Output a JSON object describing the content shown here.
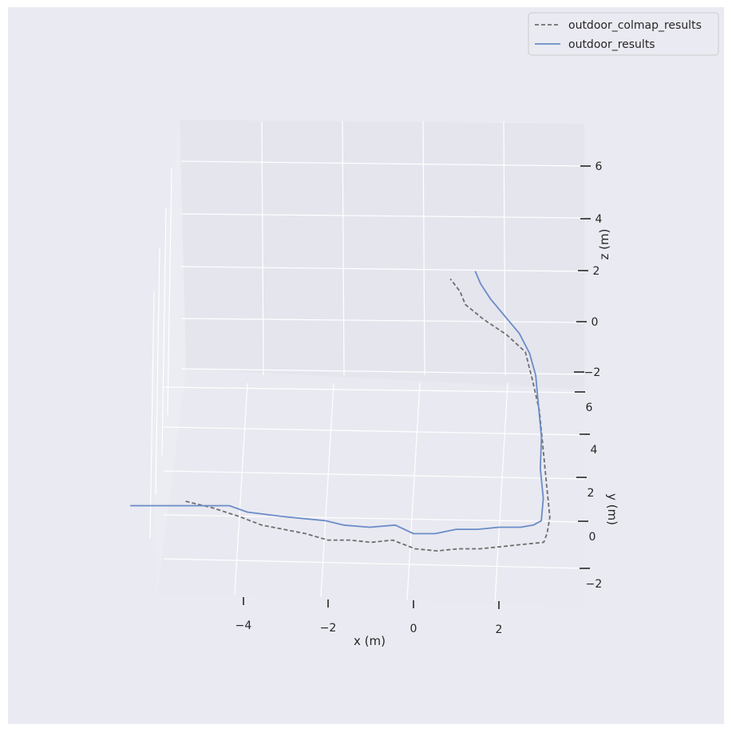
{
  "chart_data": {
    "type": "line",
    "projection": "3d",
    "xlabel": "x (m)",
    "ylabel": "y (m)",
    "zlabel": "z (m)",
    "x_ticks": [
      "−4",
      "−2",
      "0",
      "2"
    ],
    "y_ticks": [
      "6",
      "4",
      "2",
      "0",
      "−2"
    ],
    "z_ticks": [
      "6",
      "4",
      "2",
      "0",
      "−2"
    ],
    "xlim": [
      -6,
      4
    ],
    "ylim": [
      -3,
      7
    ],
    "zlim": [
      -3,
      7
    ],
    "grid": true,
    "legend_position": "top-right",
    "colors": {
      "background": "#eaeaf2",
      "grid": "#ffffff",
      "colmap": "#6e6e6e",
      "results": "#6a8cc7"
    },
    "series": [
      {
        "name": "outdoor_colmap_results",
        "style": "dashed",
        "x": [
          -5.2,
          -4.6,
          -4.0,
          -3.5,
          -3.0,
          -2.5,
          -2.0,
          -1.5,
          -1.0,
          -0.5,
          0.0,
          0.5,
          1.0,
          1.5,
          2.0,
          2.5,
          3.0,
          3.1,
          3.2,
          3.2,
          3.2,
          3.2,
          3.1,
          3.0,
          2.6,
          2.1,
          1.7,
          1.6,
          1.4
        ],
        "y": [
          3.1,
          2.8,
          2.4,
          2.0,
          1.8,
          1.6,
          1.3,
          1.3,
          1.2,
          1.3,
          0.9,
          0.8,
          0.9,
          0.9,
          1.0,
          1.1,
          1.2,
          1.5,
          2.0,
          3.0,
          4.0,
          5.0,
          5.8,
          6.3,
          6.5,
          6.6,
          6.7,
          6.7,
          6.8
        ],
        "z": [
          -1.9,
          -1.9,
          -1.9,
          -1.9,
          -1.9,
          -1.9,
          -1.9,
          -1.9,
          -1.9,
          -1.9,
          -1.9,
          -1.9,
          -1.9,
          -1.9,
          -1.9,
          -1.9,
          -1.9,
          -1.8,
          -1.6,
          -1.2,
          -0.6,
          0.0,
          0.6,
          1.2,
          1.7,
          2.2,
          2.7,
          3.2,
          3.6
        ]
      },
      {
        "name": "outdoor_results",
        "style": "solid",
        "x": [
          -6.5,
          -5.5,
          -4.5,
          -4.2,
          -3.8,
          -3.0,
          -2.0,
          -1.6,
          -1.0,
          -0.4,
          0.0,
          0.5,
          1.0,
          1.5,
          2.0,
          2.5,
          2.8,
          3.0,
          3.1,
          3.1,
          3.2,
          3.2,
          3.2,
          3.1,
          2.9,
          2.6,
          2.3,
          2.1,
          2.0
        ],
        "y": [
          2.9,
          2.9,
          2.9,
          2.9,
          2.6,
          2.4,
          2.2,
          2.0,
          1.9,
          2.0,
          1.6,
          1.6,
          1.8,
          1.8,
          1.9,
          1.9,
          2.0,
          2.2,
          3.0,
          4.0,
          5.0,
          5.8,
          6.3,
          6.6,
          6.8,
          7.0,
          7.2,
          7.3,
          7.4
        ],
        "z": [
          -1.9,
          -1.9,
          -1.9,
          -1.9,
          -1.9,
          -1.9,
          -1.9,
          -1.9,
          -1.9,
          -1.9,
          -1.9,
          -1.9,
          -1.9,
          -1.9,
          -1.9,
          -1.9,
          -1.9,
          -1.9,
          -1.7,
          -1.4,
          -1.0,
          -0.4,
          0.3,
          0.9,
          1.5,
          2.0,
          2.5,
          3.0,
          3.4
        ]
      }
    ]
  }
}
